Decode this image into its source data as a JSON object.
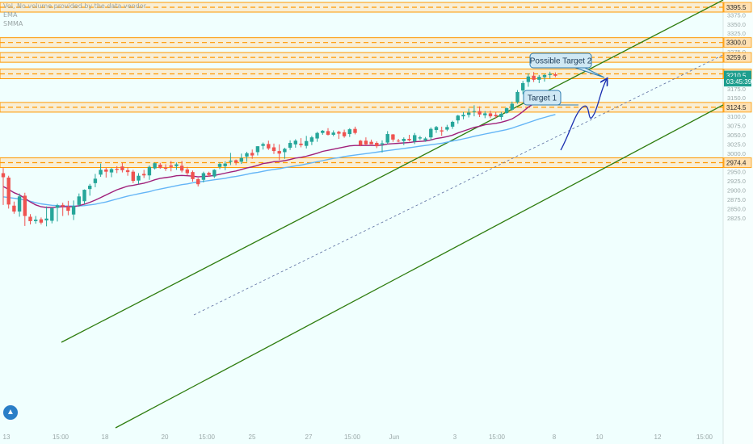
{
  "legend": {
    "symbol": "",
    "volume_note": "Vol, No volume provided by the data vendor",
    "ind1": "EMA",
    "ind2": "SMMA"
  },
  "logo_icon": "tradingview-logo-icon",
  "colors": {
    "background": "#f0fffe",
    "up": "#26a69a",
    "down": "#ef5350",
    "channel": "#2e7d0f",
    "ema": "#a0207a",
    "smma": "#64b5f6",
    "level_fill": "#ffe0b2",
    "level_line": "#ff9800",
    "price_tag": "#1e9e8e",
    "arrow": "#1a2fb0",
    "callout_bg": "#cfe8f4",
    "callout_border": "#2f7db0"
  },
  "chart_data": {
    "type": "candlestick",
    "title": "",
    "xlabel": "",
    "ylabel": "",
    "ylim": [
      2805,
      3420
    ],
    "x_ticks": [
      "13",
      "15:00",
      "18",
      "20",
      "15:00",
      "25",
      "27",
      "15:00",
      "Jun",
      "3",
      "15:00",
      "8",
      "10",
      "12",
      "15:00"
    ],
    "y_ticks": [
      2825,
      2850,
      2875,
      2900,
      2925,
      2950,
      3000,
      3025,
      3050,
      3075,
      3100,
      3150,
      3175,
      3275,
      3325,
      3350,
      3375
    ],
    "horizontal_levels": [
      {
        "label": "3395.5",
        "value": 3395.5
      },
      {
        "label": "3300.0",
        "value": 3300.0
      },
      {
        "label": "3259.6",
        "value": 3259.6
      },
      {
        "label": "3215.1",
        "value": 3215.1
      },
      {
        "label": "3124.5",
        "value": 3124.5
      },
      {
        "label": "2974.4",
        "value": 2974.4
      }
    ],
    "price_tags": [
      {
        "label": "3210.5",
        "value": 3210.5
      },
      {
        "label": "03:45:39",
        "value": 3194
      }
    ],
    "candles": [
      {
        "o": 2946,
        "h": 2960,
        "l": 2860,
        "c": 2935
      },
      {
        "o": 2934,
        "h": 2939,
        "l": 2850,
        "c": 2861
      },
      {
        "o": 2858,
        "h": 2869,
        "l": 2836,
        "c": 2842
      },
      {
        "o": 2842,
        "h": 2891,
        "l": 2828,
        "c": 2883
      },
      {
        "o": 2885,
        "h": 2893,
        "l": 2803,
        "c": 2830
      },
      {
        "o": 2828,
        "h": 2835,
        "l": 2807,
        "c": 2816
      },
      {
        "o": 2816,
        "h": 2830,
        "l": 2809,
        "c": 2820
      },
      {
        "o": 2821,
        "h": 2826,
        "l": 2807,
        "c": 2812
      },
      {
        "o": 2818,
        "h": 2856,
        "l": 2802,
        "c": 2823
      },
      {
        "o": 2817,
        "h": 2854,
        "l": 2810,
        "c": 2851
      },
      {
        "o": 2852,
        "h": 2863,
        "l": 2815,
        "c": 2859
      },
      {
        "o": 2860,
        "h": 2866,
        "l": 2830,
        "c": 2856
      },
      {
        "o": 2855,
        "h": 2871,
        "l": 2832,
        "c": 2844
      },
      {
        "o": 2834,
        "h": 2872,
        "l": 2819,
        "c": 2857
      },
      {
        "o": 2860,
        "h": 2891,
        "l": 2855,
        "c": 2883
      },
      {
        "o": 2870,
        "h": 2902,
        "l": 2862,
        "c": 2901
      },
      {
        "o": 2903,
        "h": 2917,
        "l": 2885,
        "c": 2912
      },
      {
        "o": 2919,
        "h": 2944,
        "l": 2908,
        "c": 2931
      },
      {
        "o": 2942,
        "h": 2972,
        "l": 2936,
        "c": 2955
      },
      {
        "o": 2956,
        "h": 2961,
        "l": 2934,
        "c": 2950
      },
      {
        "o": 2948,
        "h": 2960,
        "l": 2935,
        "c": 2957
      },
      {
        "o": 2958,
        "h": 2965,
        "l": 2946,
        "c": 2955
      },
      {
        "o": 2964,
        "h": 2974,
        "l": 2948,
        "c": 2954
      },
      {
        "o": 2954,
        "h": 2962,
        "l": 2939,
        "c": 2949
      },
      {
        "o": 2950,
        "h": 2955,
        "l": 2919,
        "c": 2925
      },
      {
        "o": 2926,
        "h": 2946,
        "l": 2916,
        "c": 2939
      },
      {
        "o": 2944,
        "h": 2955,
        "l": 2933,
        "c": 2940
      },
      {
        "o": 2940,
        "h": 2967,
        "l": 2928,
        "c": 2963
      },
      {
        "o": 2959,
        "h": 2975,
        "l": 2956,
        "c": 2973
      },
      {
        "o": 2969,
        "h": 2974,
        "l": 2958,
        "c": 2960
      },
      {
        "o": 2961,
        "h": 2970,
        "l": 2952,
        "c": 2958
      },
      {
        "o": 2967,
        "h": 2979,
        "l": 2951,
        "c": 2963
      },
      {
        "o": 2965,
        "h": 2975,
        "l": 2955,
        "c": 2970
      },
      {
        "o": 2966,
        "h": 2979,
        "l": 2948,
        "c": 2953
      },
      {
        "o": 2956,
        "h": 2963,
        "l": 2940,
        "c": 2946
      },
      {
        "o": 2949,
        "h": 2953,
        "l": 2923,
        "c": 2930
      },
      {
        "o": 2930,
        "h": 2933,
        "l": 2910,
        "c": 2916
      },
      {
        "o": 2928,
        "h": 2950,
        "l": 2921,
        "c": 2946
      },
      {
        "o": 2947,
        "h": 2950,
        "l": 2936,
        "c": 2941
      },
      {
        "o": 2937,
        "h": 2957,
        "l": 2933,
        "c": 2955
      },
      {
        "o": 2963,
        "h": 2975,
        "l": 2957,
        "c": 2971
      },
      {
        "o": 2965,
        "h": 2978,
        "l": 2954,
        "c": 2972
      },
      {
        "o": 2977,
        "h": 3001,
        "l": 2968,
        "c": 2980
      },
      {
        "o": 2981,
        "h": 2983,
        "l": 2968,
        "c": 2975
      },
      {
        "o": 2977,
        "h": 2999,
        "l": 2971,
        "c": 2987
      },
      {
        "o": 2991,
        "h": 3004,
        "l": 2977,
        "c": 3000
      },
      {
        "o": 3001,
        "h": 3010,
        "l": 2985,
        "c": 2994
      },
      {
        "o": 3003,
        "h": 3019,
        "l": 2994,
        "c": 3019
      },
      {
        "o": 3020,
        "h": 3029,
        "l": 3010,
        "c": 3025
      },
      {
        "o": 3025,
        "h": 3034,
        "l": 3009,
        "c": 3013
      },
      {
        "o": 3016,
        "h": 3026,
        "l": 2998,
        "c": 3006
      },
      {
        "o": 3006,
        "h": 3024,
        "l": 2981,
        "c": 2999
      },
      {
        "o": 3003,
        "h": 3015,
        "l": 2985,
        "c": 3012
      },
      {
        "o": 3015,
        "h": 3035,
        "l": 3009,
        "c": 3028
      },
      {
        "o": 3024,
        "h": 3038,
        "l": 3015,
        "c": 3034
      },
      {
        "o": 3026,
        "h": 3041,
        "l": 3016,
        "c": 3022
      },
      {
        "o": 3020,
        "h": 3047,
        "l": 3013,
        "c": 3033
      },
      {
        "o": 3031,
        "h": 3047,
        "l": 3022,
        "c": 3043
      },
      {
        "o": 3040,
        "h": 3058,
        "l": 3031,
        "c": 3055
      },
      {
        "o": 3055,
        "h": 3063,
        "l": 3050,
        "c": 3061
      },
      {
        "o": 3060,
        "h": 3068,
        "l": 3048,
        "c": 3050
      },
      {
        "o": 3050,
        "h": 3062,
        "l": 3046,
        "c": 3056
      },
      {
        "o": 3058,
        "h": 3061,
        "l": 3039,
        "c": 3053
      },
      {
        "o": 3057,
        "h": 3064,
        "l": 3042,
        "c": 3046
      },
      {
        "o": 3052,
        "h": 3068,
        "l": 3044,
        "c": 3065
      },
      {
        "o": 3066,
        "h": 3072,
        "l": 3051,
        "c": 3055
      },
      {
        "o": 3034,
        "h": 3036,
        "l": 3019,
        "c": 3022
      },
      {
        "o": 3034,
        "h": 3043,
        "l": 3021,
        "c": 3024
      },
      {
        "o": 3031,
        "h": 3037,
        "l": 3025,
        "c": 3024
      },
      {
        "o": 3028,
        "h": 3032,
        "l": 3014,
        "c": 3019
      },
      {
        "o": 3024,
        "h": 3035,
        "l": 3002,
        "c": 3027
      },
      {
        "o": 3029,
        "h": 3060,
        "l": 3025,
        "c": 3052
      },
      {
        "o": 3051,
        "h": 3052,
        "l": 3031,
        "c": 3037
      },
      {
        "o": 3034,
        "h": 3039,
        "l": 3030,
        "c": 3033
      },
      {
        "o": 3033,
        "h": 3043,
        "l": 3022,
        "c": 3039
      },
      {
        "o": 3039,
        "h": 3050,
        "l": 3032,
        "c": 3035
      },
      {
        "o": 3032,
        "h": 3055,
        "l": 3025,
        "c": 3049
      },
      {
        "o": 3040,
        "h": 3047,
        "l": 3036,
        "c": 3043
      },
      {
        "o": 3035,
        "h": 3044,
        "l": 3031,
        "c": 3040
      },
      {
        "o": 3043,
        "h": 3070,
        "l": 3035,
        "c": 3066
      },
      {
        "o": 3063,
        "h": 3074,
        "l": 3055,
        "c": 3071
      },
      {
        "o": 3062,
        "h": 3072,
        "l": 3047,
        "c": 3059
      },
      {
        "o": 3064,
        "h": 3077,
        "l": 3060,
        "c": 3071
      },
      {
        "o": 3072,
        "h": 3088,
        "l": 3066,
        "c": 3085
      },
      {
        "o": 3089,
        "h": 3104,
        "l": 3080,
        "c": 3102
      },
      {
        "o": 3100,
        "h": 3112,
        "l": 3092,
        "c": 3104
      },
      {
        "o": 3104,
        "h": 3121,
        "l": 3097,
        "c": 3110
      },
      {
        "o": 3112,
        "h": 3130,
        "l": 3100,
        "c": 3114
      },
      {
        "o": 3114,
        "h": 3127,
        "l": 3098,
        "c": 3105
      },
      {
        "o": 3103,
        "h": 3114,
        "l": 3095,
        "c": 3108
      },
      {
        "o": 3108,
        "h": 3115,
        "l": 3095,
        "c": 3100
      },
      {
        "o": 3104,
        "h": 3112,
        "l": 3094,
        "c": 3100
      },
      {
        "o": 3098,
        "h": 3112,
        "l": 3090,
        "c": 3107
      },
      {
        "o": 3109,
        "h": 3124,
        "l": 3107,
        "c": 3122
      },
      {
        "o": 3118,
        "h": 3140,
        "l": 3115,
        "c": 3134
      },
      {
        "o": 3138,
        "h": 3171,
        "l": 3134,
        "c": 3166
      },
      {
        "o": 3170,
        "h": 3196,
        "l": 3160,
        "c": 3190
      },
      {
        "o": 3193,
        "h": 3216,
        "l": 3180,
        "c": 3208
      },
      {
        "o": 3210,
        "h": 3220,
        "l": 3193,
        "c": 3199
      },
      {
        "o": 3199,
        "h": 3212,
        "l": 3190,
        "c": 3207
      },
      {
        "o": 3206,
        "h": 3215,
        "l": 3194,
        "c": 3212
      },
      {
        "o": 3212,
        "h": 3221,
        "l": 3202,
        "c": 3215
      },
      {
        "o": 3214,
        "h": 3219,
        "l": 3206,
        "c": 3210
      }
    ],
    "ema": [
      2910,
      2902,
      2893,
      2887,
      2878,
      2868,
      2860,
      2855,
      2853,
      2853,
      2854,
      2855,
      2855,
      2855,
      2858,
      2862,
      2867,
      2873,
      2880,
      2887,
      2894,
      2901,
      2906,
      2911,
      2913,
      2916,
      2919,
      2923,
      2928,
      2932,
      2934,
      2936,
      2939,
      2940,
      2939,
      2938,
      2936,
      2937,
      2938,
      2940,
      2943,
      2946,
      2949,
      2952,
      2956,
      2960,
      2963,
      2967,
      2972,
      2974,
      2977,
      2978,
      2980,
      2983,
      2987,
      2989,
      2992,
      2996,
      3000,
      3005,
      3008,
      3011,
      3014,
      3017,
      3020,
      3021,
      3021,
      3021,
      3021,
      3021,
      3022,
      3025,
      3026,
      3027,
      3028,
      3029,
      3031,
      3032,
      3033,
      3036,
      3040,
      3042,
      3045,
      3049,
      3055,
      3060,
      3065,
      3070,
      3073,
      3077,
      3079,
      3081,
      3084,
      3088,
      3093,
      3102,
      3113,
      3125,
      3134,
      3143,
      3151,
      3159,
      3166
    ],
    "smma": [
      2882,
      2880,
      2878,
      2876,
      2873,
      2870,
      2866,
      2863,
      2861,
      2859,
      2858,
      2857,
      2857,
      2857,
      2857,
      2858,
      2860,
      2862,
      2865,
      2868,
      2872,
      2876,
      2880,
      2884,
      2887,
      2890,
      2893,
      2896,
      2900,
      2903,
      2906,
      2909,
      2912,
      2915,
      2917,
      2920,
      2922,
      2924,
      2926,
      2928,
      2930,
      2932,
      2935,
      2937,
      2940,
      2943,
      2946,
      2948,
      2951,
      2954,
      2956,
      2958,
      2961,
      2963,
      2966,
      2968,
      2971,
      2974,
      2977,
      2980,
      2983,
      2986,
      2988,
      2991,
      2993,
      2995,
      2997,
      2999,
      3001,
      3003,
      3005,
      3007,
      3009,
      3011,
      3013,
      3015,
      3017,
      3019,
      3021,
      3023,
      3025,
      3027,
      3030,
      3033,
      3036,
      3039,
      3042,
      3046,
      3049,
      3052,
      3055,
      3058,
      3061,
      3064,
      3068,
      3073,
      3078,
      3083,
      3088,
      3093,
      3097,
      3101,
      3105
    ],
    "annotations": [
      {
        "label": "Possible Target 2"
      },
      {
        "label": "Target 1"
      }
    ]
  }
}
